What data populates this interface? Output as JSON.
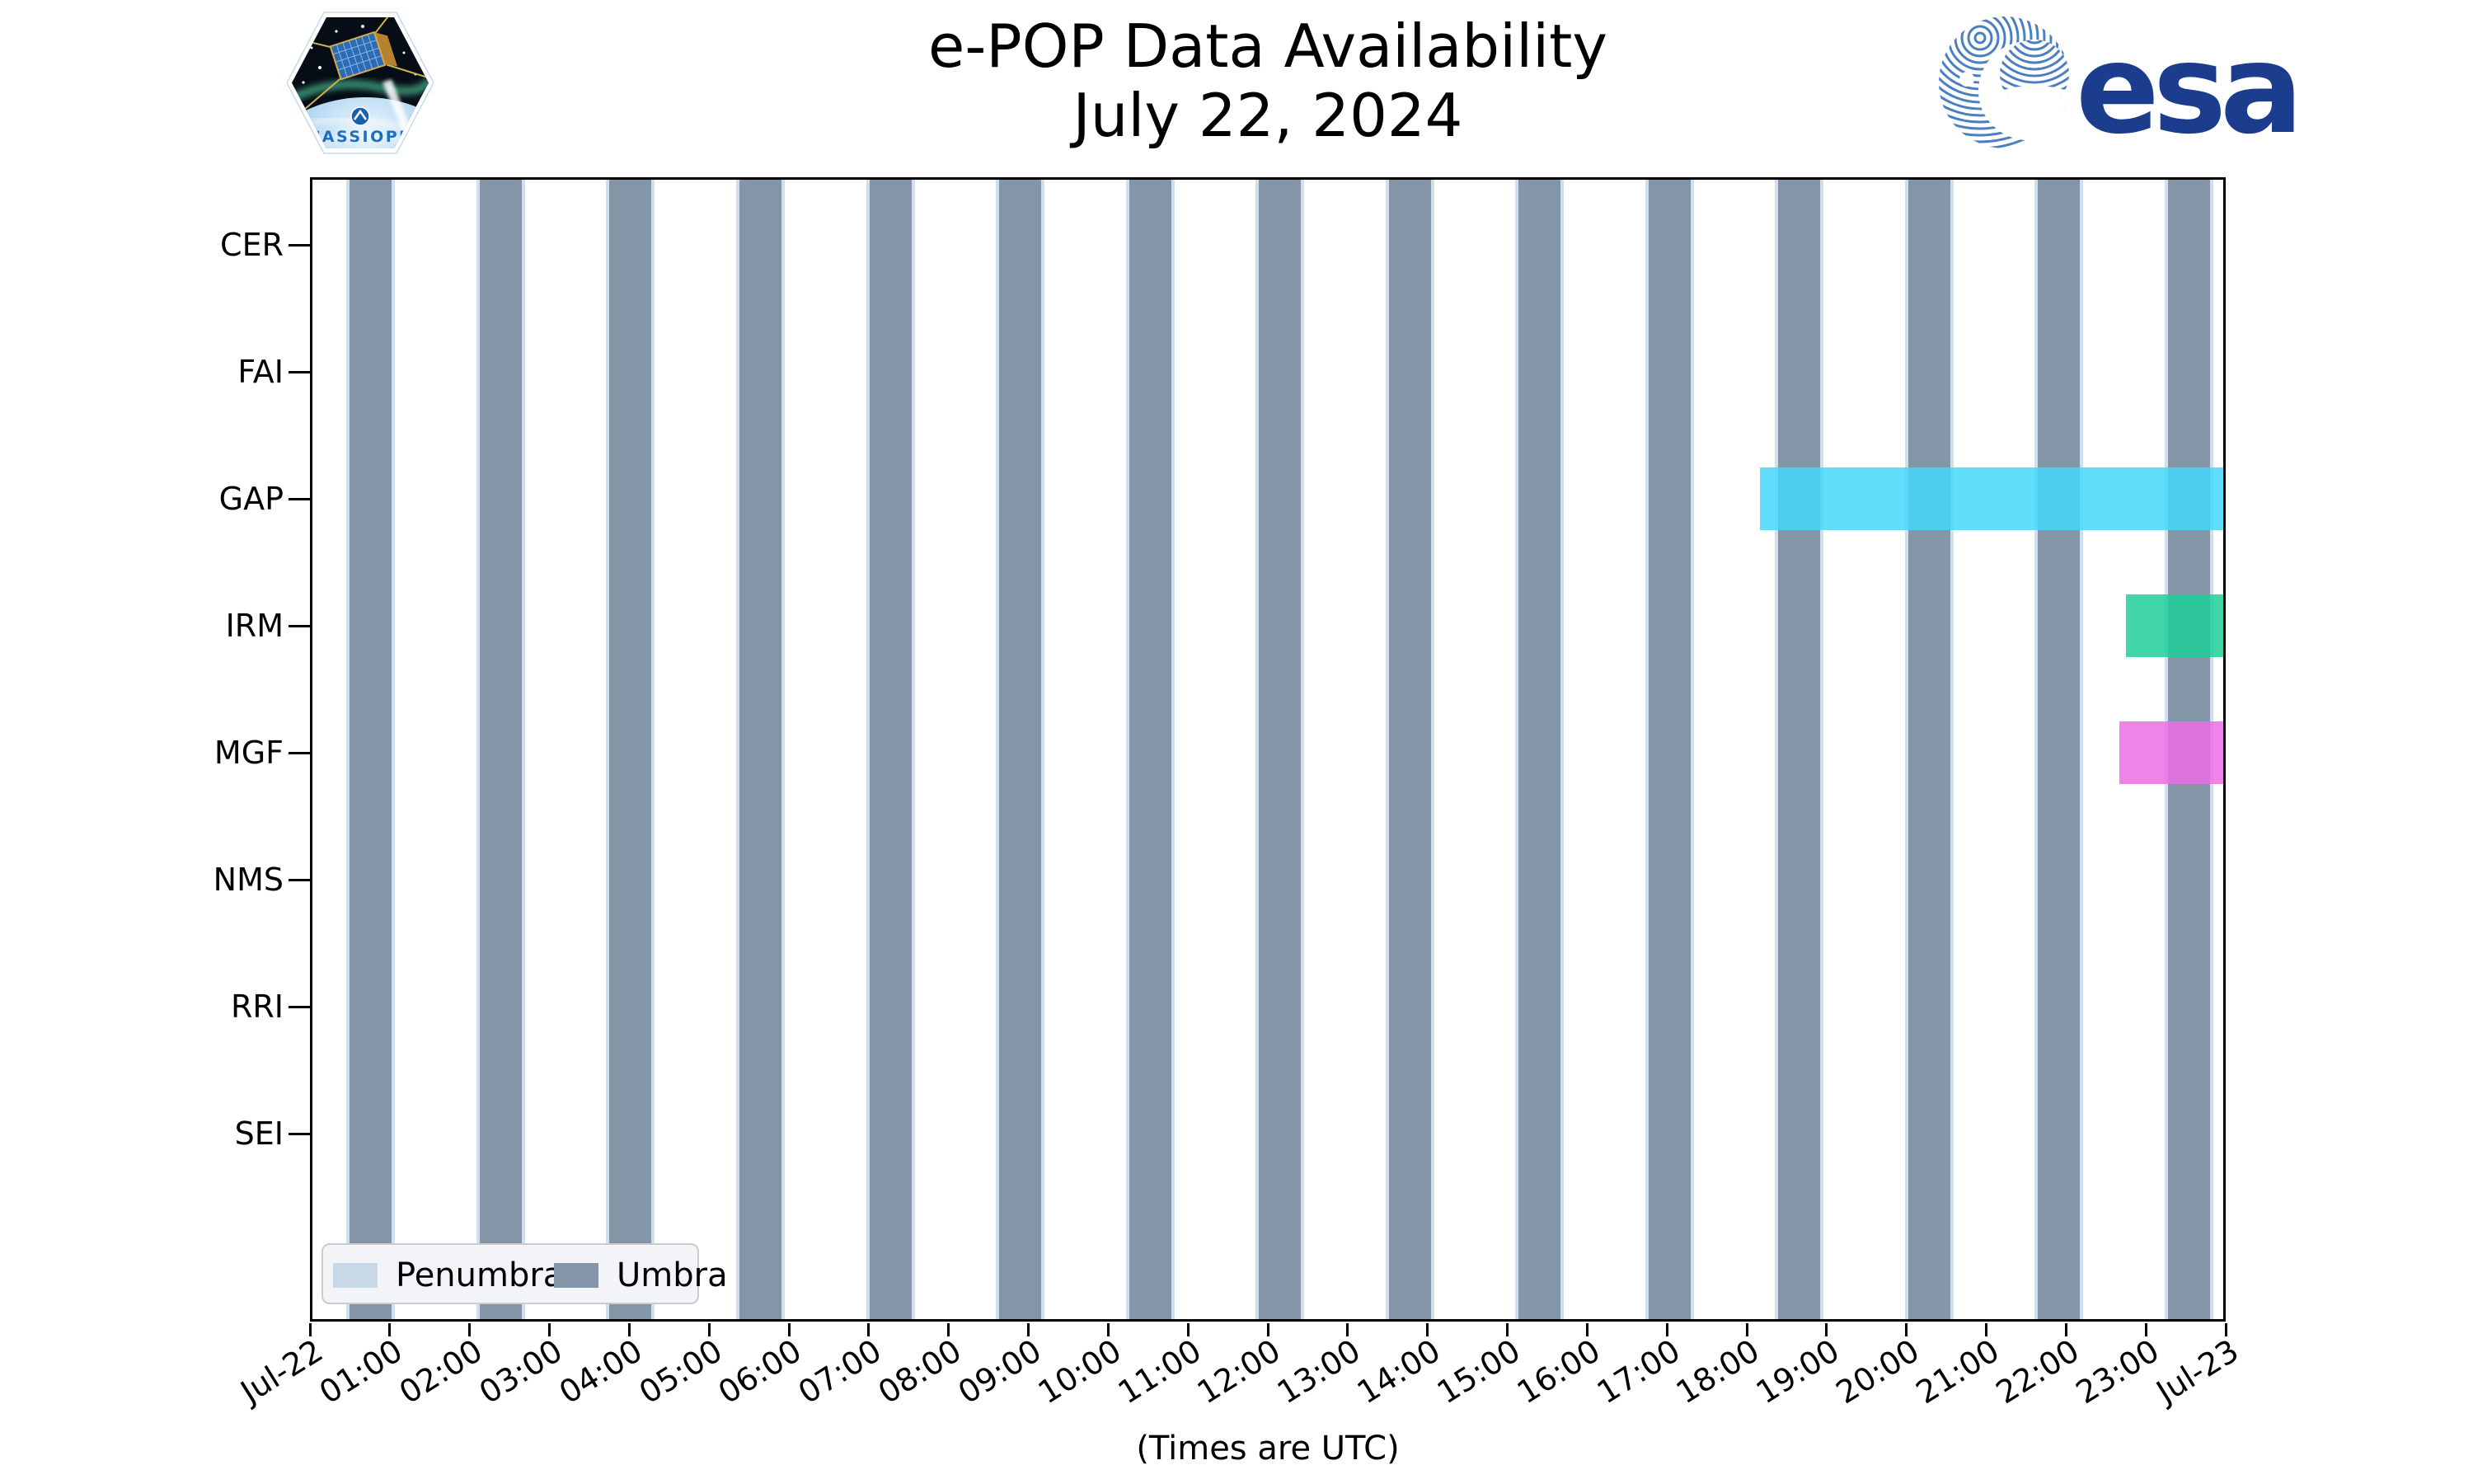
{
  "page": {
    "background": "#ffffff"
  },
  "header": {
    "title": "e-POP Data Availability",
    "subtitle": "July 22, 2024",
    "cassiope_patch_label": "CASSIOPE",
    "esa_wordmark": "esa"
  },
  "chart_data": {
    "type": "gantt",
    "title": "e-POP Data Availability",
    "subtitle": "July 22, 2024",
    "xlabel": "(Times are UTC)",
    "x_range_hours": [
      0,
      24
    ],
    "x_tick_labels": [
      "Jul-22",
      "01:00",
      "02:00",
      "03:00",
      "04:00",
      "05:00",
      "06:00",
      "07:00",
      "08:00",
      "09:00",
      "10:00",
      "11:00",
      "12:00",
      "13:00",
      "14:00",
      "15:00",
      "16:00",
      "17:00",
      "18:00",
      "19:00",
      "20:00",
      "21:00",
      "22:00",
      "23:00",
      "Jul-23"
    ],
    "instruments": [
      "CER",
      "FAI",
      "GAP",
      "IRM",
      "MGF",
      "NMS",
      "RRI",
      "SEI"
    ],
    "availability": [
      {
        "instrument": "GAP",
        "row": 2,
        "start": "18:10",
        "end": "24:00",
        "color": "#44D8FA"
      },
      {
        "instrument": "IRM",
        "row": 3,
        "start": "22:45",
        "end": "24:00",
        "color": "#1FCF99"
      },
      {
        "instrument": "MGF",
        "row": 4,
        "start": "22:40",
        "end": "24:00",
        "color": "#ED6DE4"
      }
    ],
    "eclipse_bands": {
      "first_umbra_start": "00:30",
      "period_minutes": 97.6,
      "umbra_duration_minutes": 31.6,
      "count": 15,
      "umbra_color": "#8495A8",
      "penumbra_color": "#C9D8E8"
    },
    "legend": {
      "position": "lower left",
      "entries": [
        {
          "label": "Penumbra",
          "color": "#C9D8E8"
        },
        {
          "label": "Umbra",
          "color": "#8495A8"
        }
      ]
    },
    "grid": false
  }
}
